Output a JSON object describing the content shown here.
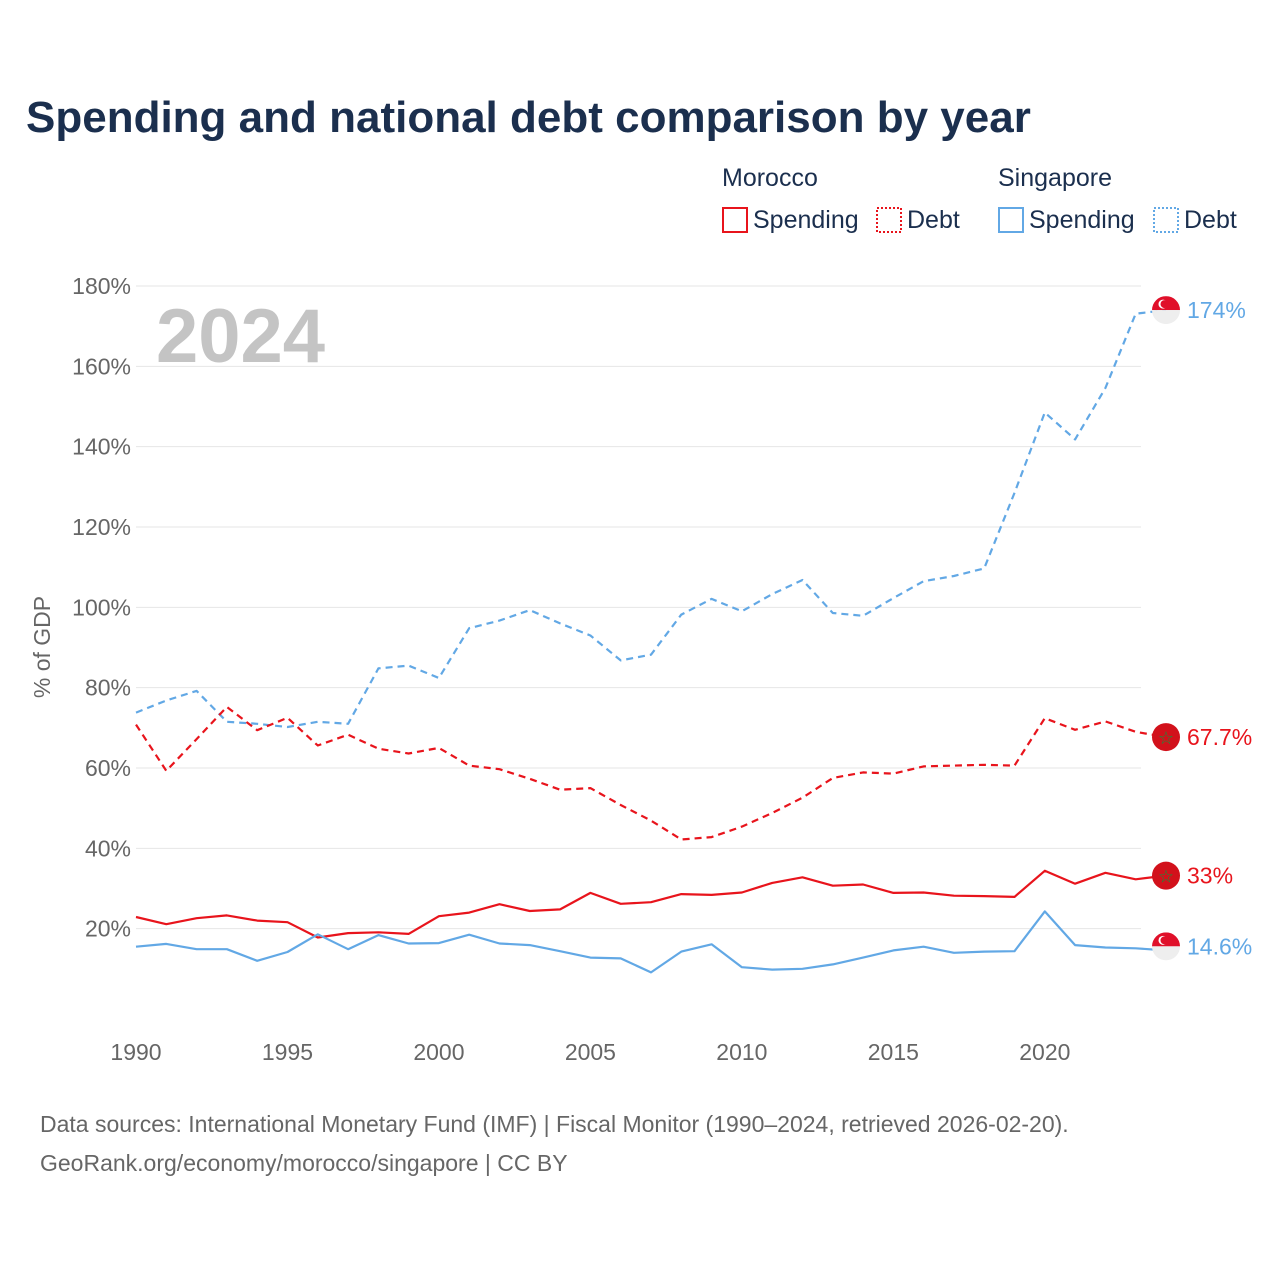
{
  "chart_data": {
    "type": "line",
    "title": "Spending and national debt comparison by year",
    "year_badge": "2024",
    "ylabel": "% of GDP",
    "xlabel": "",
    "xlim": [
      1990,
      2024
    ],
    "ylim": [
      0,
      180
    ],
    "x_ticks": [
      1990,
      1995,
      2000,
      2005,
      2010,
      2015,
      2020
    ],
    "y_ticks": [
      20,
      40,
      60,
      80,
      100,
      120,
      140,
      160,
      180
    ],
    "y_tick_labels": [
      "20%",
      "40%",
      "60%",
      "80%",
      "100%",
      "120%",
      "140%",
      "160%",
      "180%"
    ],
    "legend": {
      "groups": [
        {
          "country": "Morocco",
          "items": [
            "Spending",
            "Debt"
          ],
          "color": "#e8141c"
        },
        {
          "country": "Singapore",
          "items": [
            "Spending",
            "Debt"
          ],
          "color": "#62a8e5"
        }
      ]
    },
    "x": [
      1990,
      1991,
      1992,
      1993,
      1994,
      1995,
      1996,
      1997,
      1998,
      1999,
      2000,
      2001,
      2002,
      2003,
      2004,
      2005,
      2006,
      2007,
      2008,
      2009,
      2010,
      2011,
      2012,
      2013,
      2014,
      2015,
      2016,
      2017,
      2018,
      2019,
      2020,
      2021,
      2022,
      2023,
      2024
    ],
    "series": [
      {
        "name": "Singapore Debt",
        "country": "Singapore",
        "metric": "Debt",
        "style": "dashed",
        "color": "#62a8e5",
        "values": [
          73.8,
          76.8,
          79.2,
          71.5,
          71.0,
          70.2,
          71.5,
          71.0,
          84.8,
          85.5,
          82.4,
          94.8,
          96.7,
          99.3,
          96.0,
          93.0,
          86.8,
          88.2,
          98.2,
          102.1,
          99.0,
          103.3,
          106.8,
          98.6,
          97.9,
          102.3,
          106.5,
          107.8,
          109.7,
          128.5,
          148.5,
          141.8,
          154.6,
          173.1,
          174.0
        ],
        "end_label": "174%"
      },
      {
        "name": "Morocco Debt",
        "country": "Morocco",
        "metric": "Debt",
        "style": "dashed",
        "color": "#e8141c",
        "values": [
          70.8,
          59.3,
          67.2,
          75.2,
          69.4,
          72.5,
          65.6,
          68.3,
          64.8,
          63.6,
          65.0,
          60.6,
          59.7,
          57.3,
          54.6,
          55.0,
          50.8,
          46.9,
          42.2,
          42.8,
          45.4,
          48.8,
          52.6,
          57.5,
          58.9,
          58.6,
          60.4,
          60.6,
          60.8,
          60.6,
          72.4,
          69.5,
          71.6,
          69.0,
          67.7
        ],
        "end_label": "67.7%"
      },
      {
        "name": "Morocco Spending",
        "country": "Morocco",
        "metric": "Spending",
        "style": "solid",
        "color": "#e8141c",
        "values": [
          22.9,
          21.1,
          22.6,
          23.3,
          22.0,
          21.6,
          17.8,
          18.9,
          19.1,
          18.7,
          23.1,
          24.0,
          26.1,
          24.4,
          24.8,
          28.9,
          26.2,
          26.6,
          28.6,
          28.4,
          29.0,
          31.4,
          32.8,
          30.7,
          31.0,
          28.9,
          29.0,
          28.2,
          28.1,
          27.9,
          34.4,
          31.2,
          33.9,
          32.3,
          33.2
        ],
        "end_label": "33%"
      },
      {
        "name": "Singapore Spending",
        "country": "Singapore",
        "metric": "Spending",
        "style": "solid",
        "color": "#62a8e5",
        "values": [
          15.5,
          16.2,
          14.9,
          14.9,
          12.0,
          14.2,
          18.6,
          14.9,
          18.4,
          16.3,
          16.4,
          18.5,
          16.3,
          15.9,
          14.4,
          12.8,
          12.6,
          9.1,
          14.3,
          16.1,
          10.4,
          9.8,
          10.0,
          11.1,
          12.8,
          14.6,
          15.5,
          14.0,
          14.3,
          14.4,
          24.3,
          15.9,
          15.3,
          15.1,
          14.6
        ],
        "end_label": "14.6%"
      }
    ]
  },
  "source": {
    "line1": "Data sources: International Monetary Fund (IMF) | Fiscal Monitor (1990–2024, retrieved 2026-02-20).",
    "line2": "GeoRank.org/economy/morocco/singapore | CC BY"
  },
  "colors": {
    "morocco": "#e8141c",
    "singapore": "#62a8e5",
    "title": "#1b2f4e",
    "grid": "#e6e6e6",
    "axis_text": "#666666",
    "year_badge": "#c4c4c4"
  },
  "icons": {
    "morocco_marker": "morocco-flag-icon",
    "singapore_marker": "singapore-flag-icon"
  }
}
